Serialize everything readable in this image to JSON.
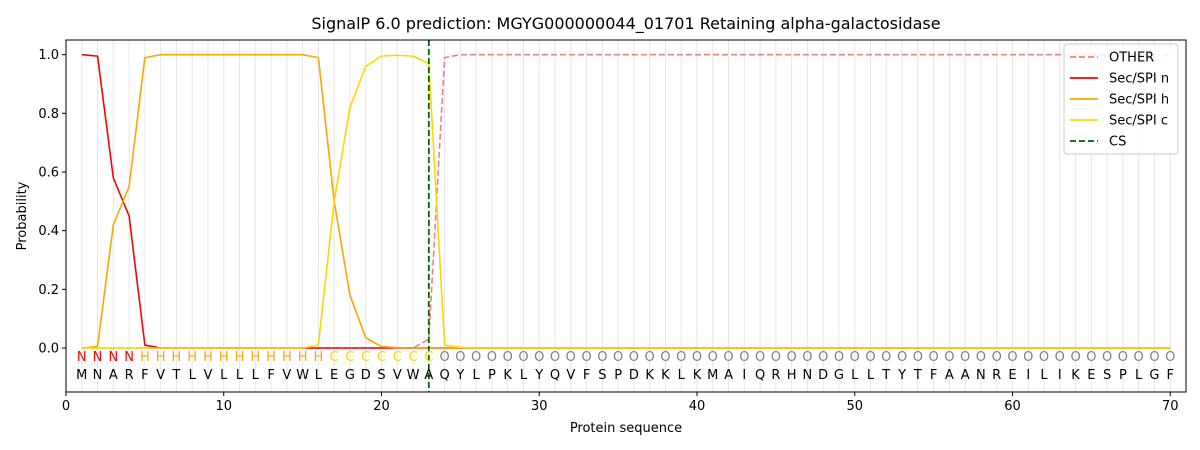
{
  "chart_data": {
    "type": "line",
    "title": "SignalP 6.0 prediction: MGYG000000044_01701 Retaining alpha-galactosidase",
    "xlabel": "Protein sequence",
    "ylabel": "Probability",
    "xlim": [
      0,
      71
    ],
    "ylim": [
      -0.15,
      1.05
    ],
    "x_ticks": [
      0,
      10,
      20,
      30,
      40,
      50,
      60,
      70
    ],
    "y_ticks": [
      0.0,
      0.2,
      0.4,
      0.6,
      0.8,
      1.0
    ],
    "grid": "vertical lines at each residue",
    "legend_position": "top-right",
    "sequence": [
      "M",
      "N",
      "A",
      "R",
      "F",
      "V",
      "T",
      "L",
      "V",
      "L",
      "L",
      "L",
      "F",
      "V",
      "W",
      "L",
      "E",
      "G",
      "D",
      "S",
      "V",
      "W",
      "A",
      "Q",
      "Y",
      "L",
      "P",
      "K",
      "L",
      "Y",
      "Q",
      "V",
      "F",
      "S",
      "P",
      "D",
      "K",
      "K",
      "L",
      "K",
      "M",
      "A",
      "I",
      "Q",
      "R",
      "H",
      "N",
      "D",
      "G",
      "L",
      "L",
      "T",
      "Y",
      "T",
      "F",
      "A",
      "A",
      "N",
      "R",
      "E",
      "I",
      "L",
      "I",
      "K",
      "E",
      "S",
      "P",
      "L",
      "G",
      "F"
    ],
    "labels": [
      "N",
      "N",
      "N",
      "N",
      "H",
      "H",
      "H",
      "H",
      "H",
      "H",
      "H",
      "H",
      "H",
      "H",
      "H",
      "H",
      "C",
      "C",
      "C",
      "C",
      "C",
      "C",
      "C",
      "O",
      "O",
      "O",
      "O",
      "O",
      "O",
      "O",
      "O",
      "O",
      "O",
      "O",
      "O",
      "O",
      "O",
      "O",
      "O",
      "O",
      "O",
      "O",
      "O",
      "O",
      "O",
      "O",
      "O",
      "O",
      "O",
      "O",
      "O",
      "O",
      "O",
      "O",
      "O",
      "O",
      "O",
      "O",
      "O",
      "O",
      "O",
      "O",
      "O",
      "O",
      "O",
      "O",
      "O",
      "O",
      "O",
      "O"
    ],
    "label_colors": {
      "N": "#ff0000",
      "H": "#ffa500",
      "C": "#ffd700",
      "O": "#808080"
    },
    "series": [
      {
        "name": "OTHER",
        "color": "#f08080",
        "dash": "dashed",
        "values": [
          0,
          0,
          0,
          0,
          0,
          0,
          0,
          0,
          0,
          0,
          0,
          0,
          0,
          0,
          0,
          0,
          0,
          0,
          0,
          0,
          0,
          0,
          0.03,
          0.99,
          1.0,
          1.0,
          1.0,
          1.0,
          1.0,
          1.0,
          1.0,
          1.0,
          1.0,
          1.0,
          1.0,
          1.0,
          1.0,
          1.0,
          1.0,
          1.0,
          1.0,
          1.0,
          1.0,
          1.0,
          1.0,
          1.0,
          1.0,
          1.0,
          1.0,
          1.0,
          1.0,
          1.0,
          1.0,
          1.0,
          1.0,
          1.0,
          1.0,
          1.0,
          1.0,
          1.0,
          1.0,
          1.0,
          1.0,
          1.0,
          1.0,
          1.0,
          1.0,
          1.0,
          1.0,
          1.0
        ]
      },
      {
        "name": "Sec/SPI n",
        "color": "#ff0000",
        "dash": "solid",
        "values": [
          1.0,
          0.995,
          0.58,
          0.45,
          0.01,
          0,
          0,
          0,
          0,
          0,
          0,
          0,
          0,
          0,
          0,
          0,
          0,
          0,
          0,
          0,
          0,
          0,
          0,
          0,
          0,
          0,
          0,
          0,
          0,
          0,
          0,
          0,
          0,
          0,
          0,
          0,
          0,
          0,
          0,
          0,
          0,
          0,
          0,
          0,
          0,
          0,
          0,
          0,
          0,
          0,
          0,
          0,
          0,
          0,
          0,
          0,
          0,
          0,
          0,
          0,
          0,
          0,
          0,
          0,
          0,
          0,
          0,
          0,
          0,
          0
        ]
      },
      {
        "name": "Sec/SPI h",
        "color": "#ffa500",
        "dash": "solid",
        "values": [
          0,
          0.005,
          0.42,
          0.55,
          0.99,
          1.0,
          1.0,
          1.0,
          1.0,
          1.0,
          1.0,
          1.0,
          1.0,
          1.0,
          1.0,
          0.99,
          0.5,
          0.18,
          0.035,
          0.005,
          0.001,
          0,
          0,
          0,
          0,
          0,
          0,
          0,
          0,
          0,
          0,
          0,
          0,
          0,
          0,
          0,
          0,
          0,
          0,
          0,
          0,
          0,
          0,
          0,
          0,
          0,
          0,
          0,
          0,
          0,
          0,
          0,
          0,
          0,
          0,
          0,
          0,
          0,
          0,
          0,
          0,
          0,
          0,
          0,
          0,
          0,
          0,
          0,
          0,
          0
        ]
      },
      {
        "name": "Sec/SPI c",
        "color": "#ffd700",
        "dash": "solid",
        "values": [
          0,
          0,
          0,
          0,
          0,
          0,
          0,
          0,
          0,
          0,
          0,
          0,
          0,
          0,
          0,
          0.01,
          0.5,
          0.82,
          0.96,
          0.995,
          0.998,
          0.995,
          0.97,
          0.01,
          0.002,
          0,
          0,
          0,
          0,
          0,
          0,
          0,
          0,
          0,
          0,
          0,
          0,
          0,
          0,
          0,
          0,
          0,
          0,
          0,
          0,
          0,
          0,
          0,
          0,
          0,
          0,
          0,
          0,
          0,
          0,
          0,
          0,
          0,
          0,
          0,
          0,
          0,
          0,
          0,
          0,
          0,
          0,
          0,
          0,
          0
        ]
      }
    ],
    "cs": {
      "name": "CS",
      "x": 23,
      "color": "#006400",
      "dash": "dashed"
    }
  }
}
